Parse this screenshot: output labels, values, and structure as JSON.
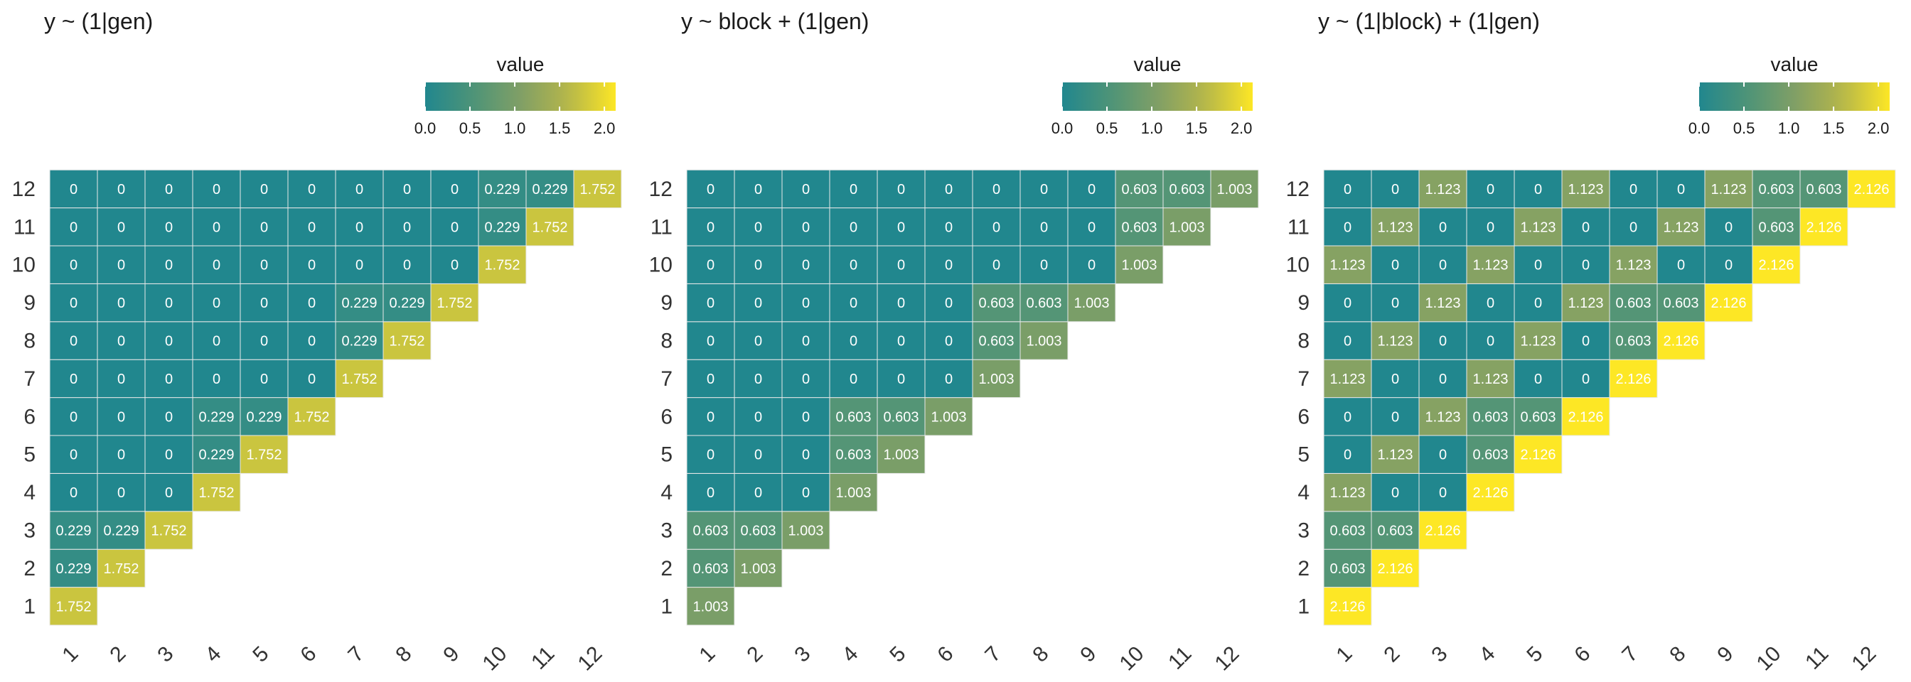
{
  "chart_data": [
    {
      "type": "heatmap",
      "title": "y ~ (1|gen)",
      "legend": {
        "title": "value",
        "ticks": [
          "0.0",
          "0.5",
          "1.0",
          "1.5",
          "2.0"
        ],
        "range": [
          0,
          2.126
        ],
        "position": "top-right"
      },
      "x_categories": [
        "1",
        "2",
        "3",
        "4",
        "5",
        "6",
        "7",
        "8",
        "9",
        "10",
        "11",
        "12"
      ],
      "y_categories": [
        "1",
        "2",
        "3",
        "4",
        "5",
        "6",
        "7",
        "8",
        "9",
        "10",
        "11",
        "12"
      ],
      "values": [
        [
          1.752
        ],
        [
          0.229,
          1.752
        ],
        [
          0.229,
          0.229,
          1.752
        ],
        [
          0,
          0,
          0,
          1.752
        ],
        [
          0,
          0,
          0,
          0.229,
          1.752
        ],
        [
          0,
          0,
          0,
          0.229,
          0.229,
          1.752
        ],
        [
          0,
          0,
          0,
          0,
          0,
          0,
          1.752
        ],
        [
          0,
          0,
          0,
          0,
          0,
          0,
          0.229,
          1.752
        ],
        [
          0,
          0,
          0,
          0,
          0,
          0,
          0.229,
          0.229,
          1.752
        ],
        [
          0,
          0,
          0,
          0,
          0,
          0,
          0,
          0,
          0,
          1.752
        ],
        [
          0,
          0,
          0,
          0,
          0,
          0,
          0,
          0,
          0,
          0.229,
          1.752
        ],
        [
          0,
          0,
          0,
          0,
          0,
          0,
          0,
          0,
          0,
          0.229,
          0.229,
          1.752
        ]
      ]
    },
    {
      "type": "heatmap",
      "title": "y ~ block + (1|gen)",
      "legend": {
        "title": "value",
        "ticks": [
          "0.0",
          "0.5",
          "1.0",
          "1.5",
          "2.0"
        ],
        "range": [
          0,
          2.126
        ],
        "position": "top-right"
      },
      "x_categories": [
        "1",
        "2",
        "3",
        "4",
        "5",
        "6",
        "7",
        "8",
        "9",
        "10",
        "11",
        "12"
      ],
      "y_categories": [
        "1",
        "2",
        "3",
        "4",
        "5",
        "6",
        "7",
        "8",
        "9",
        "10",
        "11",
        "12"
      ],
      "values": [
        [
          1.003
        ],
        [
          0.603,
          1.003
        ],
        [
          0.603,
          0.603,
          1.003
        ],
        [
          0,
          0,
          0,
          1.003
        ],
        [
          0,
          0,
          0,
          0.603,
          1.003
        ],
        [
          0,
          0,
          0,
          0.603,
          0.603,
          1.003
        ],
        [
          0,
          0,
          0,
          0,
          0,
          0,
          1.003
        ],
        [
          0,
          0,
          0,
          0,
          0,
          0,
          0.603,
          1.003
        ],
        [
          0,
          0,
          0,
          0,
          0,
          0,
          0.603,
          0.603,
          1.003
        ],
        [
          0,
          0,
          0,
          0,
          0,
          0,
          0,
          0,
          0,
          1.003
        ],
        [
          0,
          0,
          0,
          0,
          0,
          0,
          0,
          0,
          0,
          0.603,
          1.003
        ],
        [
          0,
          0,
          0,
          0,
          0,
          0,
          0,
          0,
          0,
          0.603,
          0.603,
          1.003
        ]
      ]
    },
    {
      "type": "heatmap",
      "title": "y ~ (1|block) + (1|gen)",
      "legend": {
        "title": "value",
        "ticks": [
          "0.0",
          "0.5",
          "1.0",
          "1.5",
          "2.0"
        ],
        "range": [
          0,
          2.126
        ],
        "position": "top-right"
      },
      "x_categories": [
        "1",
        "2",
        "3",
        "4",
        "5",
        "6",
        "7",
        "8",
        "9",
        "10",
        "11",
        "12"
      ],
      "y_categories": [
        "1",
        "2",
        "3",
        "4",
        "5",
        "6",
        "7",
        "8",
        "9",
        "10",
        "11",
        "12"
      ],
      "values": [
        [
          2.126
        ],
        [
          0.603,
          2.126
        ],
        [
          0.603,
          0.603,
          2.126
        ],
        [
          1.123,
          0,
          0,
          2.126
        ],
        [
          0,
          1.123,
          0,
          0.603,
          2.126
        ],
        [
          0,
          0,
          1.123,
          0.603,
          0.603,
          2.126
        ],
        [
          1.123,
          0,
          0,
          1.123,
          0,
          0,
          2.126
        ],
        [
          0,
          1.123,
          0,
          0,
          1.123,
          0,
          0.603,
          2.126
        ],
        [
          0,
          0,
          1.123,
          0,
          0,
          1.123,
          0.603,
          0.603,
          2.126
        ],
        [
          1.123,
          0,
          0,
          1.123,
          0,
          0,
          1.123,
          0,
          0,
          2.126
        ],
        [
          0,
          1.123,
          0,
          0,
          1.123,
          0,
          0,
          1.123,
          0,
          0.603,
          2.126
        ],
        [
          0,
          0,
          1.123,
          0,
          0,
          1.123,
          0,
          0,
          1.123,
          0.603,
          0.603,
          2.126
        ]
      ]
    }
  ]
}
